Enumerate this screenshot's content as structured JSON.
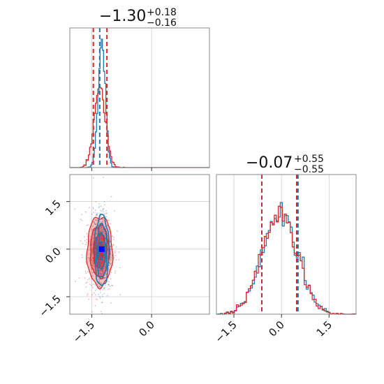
{
  "chart_data": {
    "type": "corner",
    "parameters": [
      "param_0",
      "param_1"
    ],
    "colors": {
      "run_a": "#1f77b4",
      "run_b": "#d62728",
      "truth": "#0000ff"
    },
    "grid": true,
    "axis_ranges": {
      "param_0": [
        -2.05,
        1.45
      ],
      "param_1": [
        -2.05,
        2.35
      ]
    },
    "ticks": {
      "param_0": {
        "values": [
          -1.5,
          0.0
        ],
        "labels": [
          "−1.5",
          "0.0"
        ]
      },
      "param_1": {
        "values": [
          -1.5,
          0.0,
          1.5
        ],
        "labels": [
          "−1.5",
          "0.0",
          "1.5"
        ]
      }
    },
    "titles": [
      {
        "parameter": "param_0",
        "median": "−1.30",
        "plus": "+0.18",
        "minus": "−0.16"
      },
      {
        "parameter": "param_1",
        "median": "−0.07",
        "plus": "+0.55",
        "minus": "−0.55"
      }
    ],
    "marginals": [
      {
        "parameter": "param_0",
        "series": [
          {
            "color_key": "run_a",
            "mean": -1.25,
            "std": 0.09,
            "quantiles": [
              -1.3
            ]
          },
          {
            "color_key": "run_b",
            "mean": -1.3,
            "std": 0.14,
            "quantiles": [
              -1.46,
              -1.12
            ]
          }
        ]
      },
      {
        "parameter": "param_1",
        "series": [
          {
            "color_key": "run_a",
            "mean": -0.05,
            "std": 0.55,
            "quantiles": [
              0.52
            ]
          },
          {
            "color_key": "run_b",
            "mean": -0.07,
            "std": 0.55,
            "quantiles": [
              -0.62,
              0.48
            ]
          }
        ]
      }
    ],
    "joint": {
      "x": "param_0",
      "y": "param_1",
      "series": [
        {
          "color_key": "run_b",
          "center": [
            -1.3,
            -0.07
          ],
          "sigma": [
            0.16,
            0.55
          ],
          "filled": true
        },
        {
          "color_key": "run_a",
          "center": [
            -1.25,
            -0.05
          ],
          "sigma": [
            0.09,
            0.56
          ],
          "filled": false
        }
      ],
      "truth_point": [
        -1.25,
        0.0
      ]
    }
  }
}
